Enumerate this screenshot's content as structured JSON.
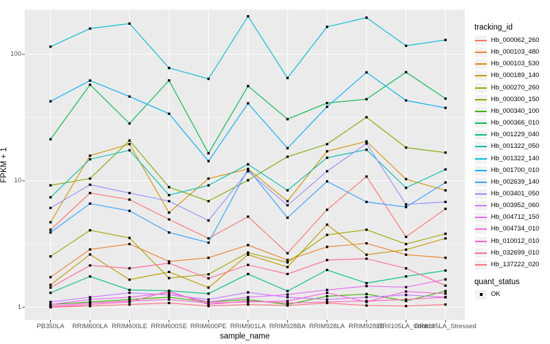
{
  "chart_data": {
    "type": "line",
    "title": "",
    "xlabel": "sample_name",
    "ylabel": "FPKM + 1",
    "y_scale": "log10",
    "ylim": [
      1,
      230
    ],
    "y_ticks": [
      1,
      10,
      100
    ],
    "y_minor_ticks": [
      3.162,
      31.62
    ],
    "grid": true,
    "legend_position": "right",
    "point_marker": "black-square",
    "categories": [
      "PB350LA",
      "RRIM600LA",
      "RRIM600LE",
      "RRIM600SE",
      "RRIM600PE",
      "RRIM901LA",
      "RRIM928BA",
      "RRIM928LA",
      "RRIM928LE",
      "RRII105LA_Control",
      "RRII105LA_Stressed"
    ],
    "series": [
      {
        "name": "Hb_000062_260",
        "color": "#F8766D",
        "values": [
          4.1,
          8.0,
          7.1,
          4.95,
          3.5,
          5.2,
          2.67,
          5.9,
          10.8,
          3.6,
          6.0
        ]
      },
      {
        "name": "Hb_000103_480",
        "color": "#EA8331",
        "values": [
          1.73,
          2.86,
          3.16,
          2.3,
          2.46,
          3.1,
          2.36,
          3.0,
          3.2,
          2.6,
          2.46
        ]
      },
      {
        "name": "Hb_000103_530",
        "color": "#D89000",
        "values": [
          4.7,
          15.8,
          19.5,
          5.6,
          10.4,
          12.4,
          6.9,
          17.1,
          20.5,
          10.3,
          8.4
        ]
      },
      {
        "name": "Hb_000189_140",
        "color": "#C09B00",
        "values": [
          1.5,
          2.61,
          1.65,
          1.9,
          1.43,
          2.6,
          2.08,
          4.5,
          2.6,
          2.85,
          3.5
        ]
      },
      {
        "name": "Hb_000270_260",
        "color": "#A3A500",
        "values": [
          2.52,
          4.06,
          3.53,
          1.7,
          1.82,
          2.7,
          2.26,
          3.73,
          4.1,
          3.16,
          3.81
        ]
      },
      {
        "name": "Hb_000300_150",
        "color": "#7CAE00",
        "values": [
          9.2,
          10.4,
          20.8,
          8.9,
          6.9,
          10.1,
          15.5,
          19.5,
          31.8,
          18.3,
          16.7
        ]
      },
      {
        "name": "Hb_000340_100",
        "color": "#39B600",
        "values": [
          1.05,
          1.1,
          1.15,
          1.2,
          1.1,
          1.15,
          1.05,
          1.22,
          1.27,
          1.12,
          1.34
        ]
      },
      {
        "name": "Hb_000366_010",
        "color": "#00BB4E",
        "values": [
          21.3,
          57.5,
          28.4,
          62.2,
          16.5,
          56.1,
          30.7,
          41.2,
          44.2,
          72.3,
          44.7
        ]
      },
      {
        "name": "Hb_001229_040",
        "color": "#00C087",
        "values": [
          1.3,
          1.75,
          1.37,
          1.35,
          1.28,
          1.83,
          1.34,
          1.97,
          1.55,
          1.75,
          1.95
        ]
      },
      {
        "name": "Hb_001322_050",
        "color": "#00C0AF",
        "values": [
          7.4,
          14.8,
          17.4,
          7.7,
          9.2,
          13.5,
          8.4,
          15.2,
          17.6,
          8.8,
          12.3
        ]
      },
      {
        "name": "Hb_001322_140",
        "color": "#00BCD8",
        "values": [
          115,
          160,
          175,
          78,
          64,
          200,
          65,
          165,
          195,
          117,
          130
        ]
      },
      {
        "name": "Hb_001700_010",
        "color": "#00B0F6",
        "values": [
          42.5,
          62,
          46.4,
          33.9,
          14.3,
          41,
          18.1,
          38.5,
          72,
          43.2,
          37.7
        ]
      },
      {
        "name": "Hb_002639_140",
        "color": "#35A2FF",
        "values": [
          3.9,
          6.6,
          5.79,
          3.9,
          3.24,
          12.4,
          5.1,
          9.9,
          6.8,
          6.2,
          9.7
        ]
      },
      {
        "name": "Hb_003401_050",
        "color": "#9590FF",
        "values": [
          6.1,
          9.3,
          8.0,
          6.9,
          4.85,
          11.9,
          6.4,
          11.9,
          19.7,
          6.5,
          6.8
        ]
      },
      {
        "name": "Hb_003952_060",
        "color": "#C77CFF",
        "values": [
          1.1,
          1.2,
          1.3,
          1.25,
          1.15,
          1.31,
          1.2,
          1.15,
          1.2,
          1.25,
          1.2
        ]
      },
      {
        "name": "Hb_004712_150",
        "color": "#E76BF3",
        "values": [
          1.05,
          1.15,
          1.2,
          1.3,
          1.1,
          1.2,
          1.26,
          1.37,
          1.47,
          1.44,
          1.66
        ]
      },
      {
        "name": "Hb_004734_010",
        "color": "#FA62DB",
        "values": [
          1.02,
          1.08,
          1.12,
          1.15,
          1.08,
          1.1,
          1.12,
          1.3,
          1.1,
          1.33,
          1.28
        ]
      },
      {
        "name": "Hb_010012_010",
        "color": "#FF62BC",
        "values": [
          1.0,
          1.05,
          1.1,
          1.34,
          1.05,
          1.12,
          1.08,
          1.1,
          1.12,
          1.15,
          1.2
        ]
      },
      {
        "name": "Hb_032699_010",
        "color": "#FF6A98",
        "values": [
          1.43,
          2.14,
          2.03,
          2.23,
          1.69,
          2.16,
          1.83,
          2.36,
          2.42,
          2.03,
          1.48
        ]
      },
      {
        "name": "Hb_137222_020",
        "color": "#FC717F",
        "values": [
          1.0,
          1.02,
          1.05,
          1.08,
          1.02,
          1.05,
          1.03,
          1.08,
          1.03,
          1.02,
          1.05
        ]
      }
    ]
  },
  "legend": {
    "tracking_title": "tracking_id",
    "quant_title": "quant_status",
    "quant_items": [
      {
        "label": "OK",
        "marker": "black-square"
      }
    ],
    "key_fill": "#F2F2F2"
  },
  "style": {
    "panel_background": "#EBEBEB",
    "grid_major_color": "#FFFFFF",
    "grid_minor_color": "#F5F5F5",
    "tick_color": "#333333",
    "tick_label_color": "#4D4D4D",
    "point_color": "#000000",
    "point_size": 3.4,
    "line_width": 1.15
  }
}
